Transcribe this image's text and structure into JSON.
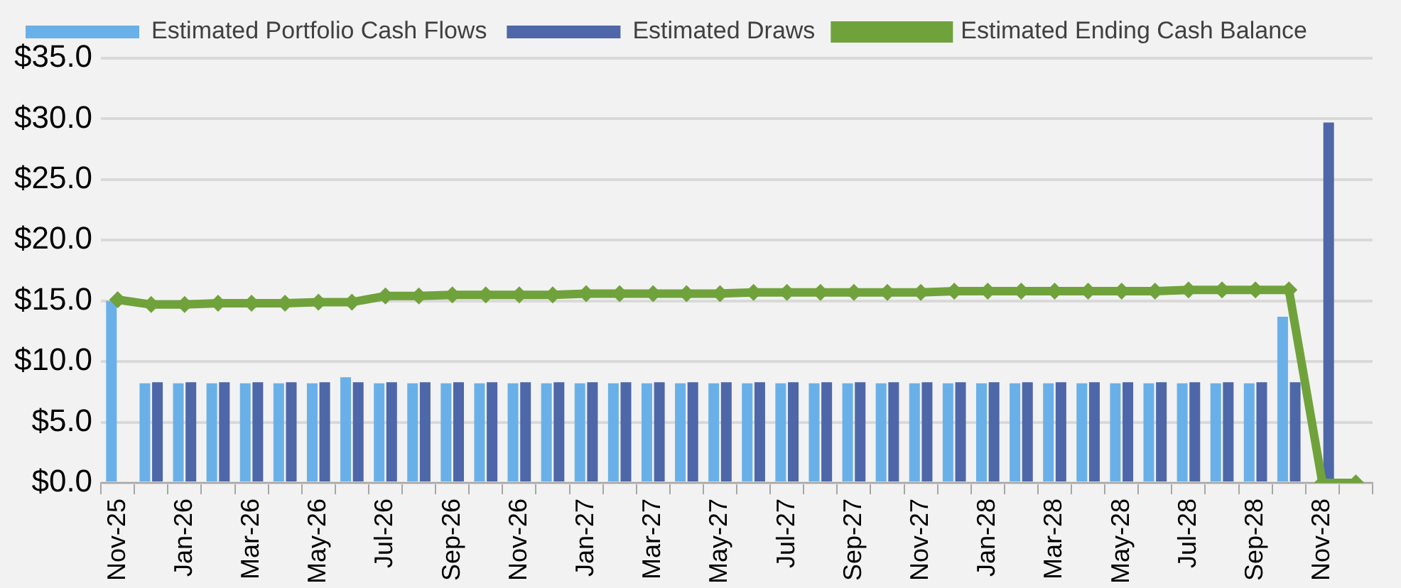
{
  "chart_data": {
    "type": "bar",
    "categories": [
      "Nov-25",
      null,
      "Jan-26",
      null,
      "Mar-26",
      null,
      "May-26",
      null,
      "Jul-26",
      null,
      "Sep-26",
      null,
      "Nov-26",
      null,
      "Jan-27",
      null,
      "Mar-27",
      null,
      "May-27",
      null,
      "Jul-27",
      null,
      "Sep-27",
      null,
      "Nov-27",
      null,
      "Jan-28",
      null,
      "Mar-28",
      null,
      "May-28",
      null,
      "Jul-28",
      null,
      "Sep-28",
      null,
      "Nov-28",
      null
    ],
    "series": [
      {
        "name": "Estimated Portfolio Cash Flows",
        "color": "#6ab0e8",
        "values": [
          15.0,
          8.2,
          8.2,
          8.2,
          8.2,
          8.2,
          8.2,
          8.7,
          8.2,
          8.2,
          8.2,
          8.2,
          8.2,
          8.2,
          8.2,
          8.2,
          8.2,
          8.2,
          8.2,
          8.2,
          8.2,
          8.2,
          8.2,
          8.2,
          8.2,
          8.2,
          8.2,
          8.2,
          8.2,
          8.2,
          8.2,
          8.2,
          8.2,
          8.2,
          8.2,
          13.7,
          null,
          null
        ]
      },
      {
        "name": "Estimated Draws",
        "color": "#4e67a8",
        "values": [
          null,
          8.3,
          8.3,
          8.3,
          8.3,
          8.3,
          8.3,
          8.3,
          8.3,
          8.3,
          8.3,
          8.3,
          8.3,
          8.3,
          8.3,
          8.3,
          8.3,
          8.3,
          8.3,
          8.3,
          8.3,
          8.3,
          8.3,
          8.3,
          8.3,
          8.3,
          8.3,
          8.3,
          8.3,
          8.3,
          8.3,
          8.3,
          8.3,
          8.3,
          8.3,
          8.3,
          29.7,
          null
        ]
      },
      {
        "name": "Estimated Ending Cash Balance",
        "type": "line",
        "color": "#70a23c",
        "values": [
          15.1,
          14.7,
          14.7,
          14.8,
          14.8,
          14.8,
          14.9,
          14.9,
          15.4,
          15.4,
          15.5,
          15.5,
          15.5,
          15.5,
          15.6,
          15.6,
          15.6,
          15.6,
          15.6,
          15.7,
          15.7,
          15.7,
          15.7,
          15.7,
          15.7,
          15.8,
          15.8,
          15.8,
          15.8,
          15.8,
          15.8,
          15.8,
          15.9,
          15.9,
          15.9,
          15.9,
          0,
          0
        ]
      }
    ],
    "ylim": [
      0,
      35
    ],
    "yticks": [
      {
        "value": 0,
        "label": "$0.0"
      },
      {
        "value": 5,
        "label": "$5.0"
      },
      {
        "value": 10,
        "label": "$10.0"
      },
      {
        "value": 15,
        "label": "$15.0"
      },
      {
        "value": 20,
        "label": "$20.0"
      },
      {
        "value": 25,
        "label": "$25.0"
      },
      {
        "value": 30,
        "label": "$30.0"
      },
      {
        "value": 35,
        "label": "$35.0"
      }
    ],
    "grid": "y",
    "legend": "top",
    "marker": "diamond",
    "line_style": "solid"
  }
}
